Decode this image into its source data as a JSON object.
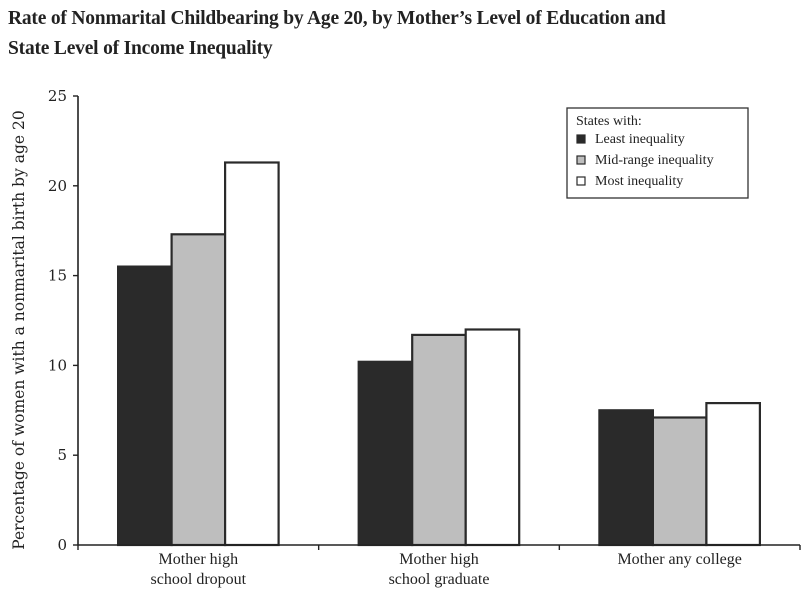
{
  "chart_data": {
    "type": "bar",
    "title_line1": "Rate of Nonmarital Childbearing by Age 20, by Mother’s Level of Education and",
    "title_line2": "State Level of Income Inequality",
    "xlabel": "",
    "ylabel": "Percentage of women with a nonmarital birth by age 20",
    "ylim": [
      0,
      25
    ],
    "yticks": [
      "0",
      "5",
      "10",
      "15",
      "20",
      "25"
    ],
    "categories": [
      [
        "Mother high",
        "school dropout"
      ],
      [
        "Mother high",
        "school graduate"
      ],
      [
        "Mother any college"
      ]
    ],
    "legend_title": "States with:",
    "legend_position": "top-right",
    "series": [
      {
        "name": "Least inequality",
        "color": "#2a2a2a",
        "values": [
          15.5,
          10.2,
          7.5
        ]
      },
      {
        "name": "Mid-range inequality",
        "color": "#bebebe",
        "values": [
          17.3,
          11.7,
          7.1
        ]
      },
      {
        "name": "Most inequality",
        "color": "#ffffff",
        "values": [
          21.3,
          12.0,
          7.9
        ]
      }
    ],
    "grid": false
  }
}
